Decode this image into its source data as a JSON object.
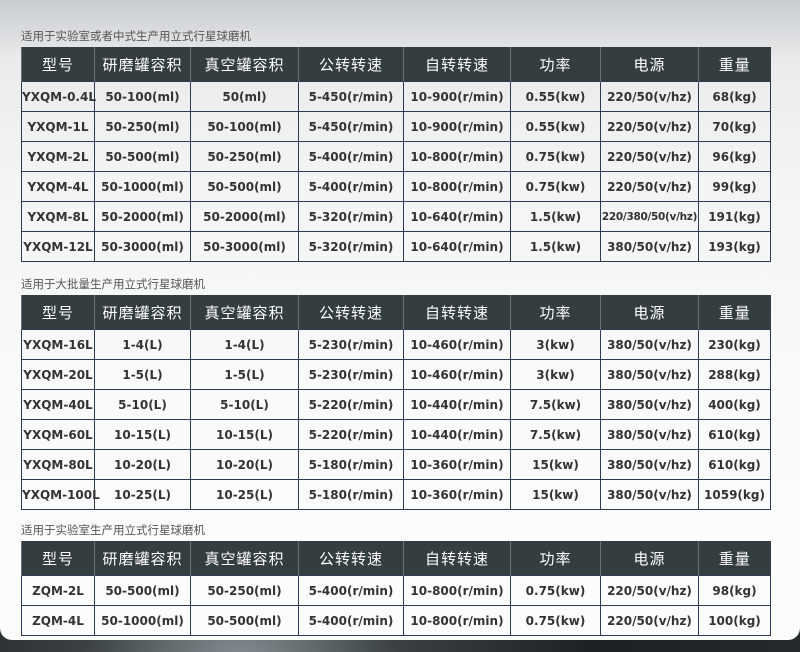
{
  "headers": [
    "型号",
    "研磨罐容积",
    "真空罐容积",
    "公转转速",
    "自转转速",
    "功率",
    "电源",
    "重量"
  ],
  "sections": [
    {
      "title": "适用于实验室或者中式生产用立式行星球磨机",
      "rows": [
        [
          "YXQM-0.4L",
          "50-100(ml)",
          "50(ml)",
          "5-450(r/min)",
          "10-900(r/min)",
          "0.55(kw)",
          "220/50(v/hz)",
          "68(kg)"
        ],
        [
          "YXQM-1L",
          "50-250(ml)",
          "50-100(ml)",
          "5-450(r/min)",
          "10-900(r/min)",
          "0.55(kw)",
          "220/50(v/hz)",
          "70(kg)"
        ],
        [
          "YXQM-2L",
          "50-500(ml)",
          "50-250(ml)",
          "5-400(r/min)",
          "10-800(r/min)",
          "0.75(kw)",
          "220/50(v/hz)",
          "96(kg)"
        ],
        [
          "YXQM-4L",
          "50-1000(ml)",
          "50-500(ml)",
          "5-400(r/min)",
          "10-800(r/min)",
          "0.75(kw)",
          "220/50(v/hz)",
          "99(kg)"
        ],
        [
          "YXQM-8L",
          "50-2000(ml)",
          "50-2000(ml)",
          "5-320(r/min)",
          "10-640(r/min)",
          "1.5(kw)",
          "220/380/50(v/hz)",
          "191(kg)"
        ],
        [
          "YXQM-12L",
          "50-3000(ml)",
          "50-3000(ml)",
          "5-320(r/min)",
          "10-640(r/min)",
          "1.5(kw)",
          "380/50(v/hz)",
          "193(kg)"
        ]
      ]
    },
    {
      "title": "适用于大批量生产用立式行星球磨机",
      "rows": [
        [
          "YXQM-16L",
          "1-4(L)",
          "1-4(L)",
          "5-230(r/min)",
          "10-460(r/min)",
          "3(kw)",
          "380/50(v/hz)",
          "230(kg)"
        ],
        [
          "YXQM-20L",
          "1-5(L)",
          "1-5(L)",
          "5-230(r/min)",
          "10-460(r/min)",
          "3(kw)",
          "380/50(v/hz)",
          "288(kg)"
        ],
        [
          "YXQM-40L",
          "5-10(L)",
          "5-10(L)",
          "5-220(r/min)",
          "10-440(r/min)",
          "7.5(kw)",
          "380/50(v/hz)",
          "400(kg)"
        ],
        [
          "YXQM-60L",
          "10-15(L)",
          "10-15(L)",
          "5-220(r/min)",
          "10-440(r/min)",
          "7.5(kw)",
          "380/50(v/hz)",
          "610(kg)"
        ],
        [
          "YXQM-80L",
          "10-20(L)",
          "10-20(L)",
          "5-180(r/min)",
          "10-360(r/min)",
          "15(kw)",
          "380/50(v/hz)",
          "610(kg)"
        ],
        [
          "YXQM-100L",
          "10-25(L)",
          "10-25(L)",
          "5-180(r/min)",
          "10-360(r/min)",
          "15(kw)",
          "380/50(v/hz)",
          "1059(kg)"
        ]
      ]
    },
    {
      "title": "适用于实验室生产用立式行星球磨机",
      "rows": [
        [
          "ZQM-2L",
          "50-500(ml)",
          "50-250(ml)",
          "5-400(r/min)",
          "10-800(r/min)",
          "0.75(kw)",
          "220/50(v/hz)",
          "98(kg)"
        ],
        [
          "ZQM-4L",
          "50-1000(ml)",
          "50-500(ml)",
          "5-400(r/min)",
          "10-800(r/min)",
          "0.75(kw)",
          "220/50(v/hz)",
          "100(kg)"
        ]
      ]
    }
  ]
}
